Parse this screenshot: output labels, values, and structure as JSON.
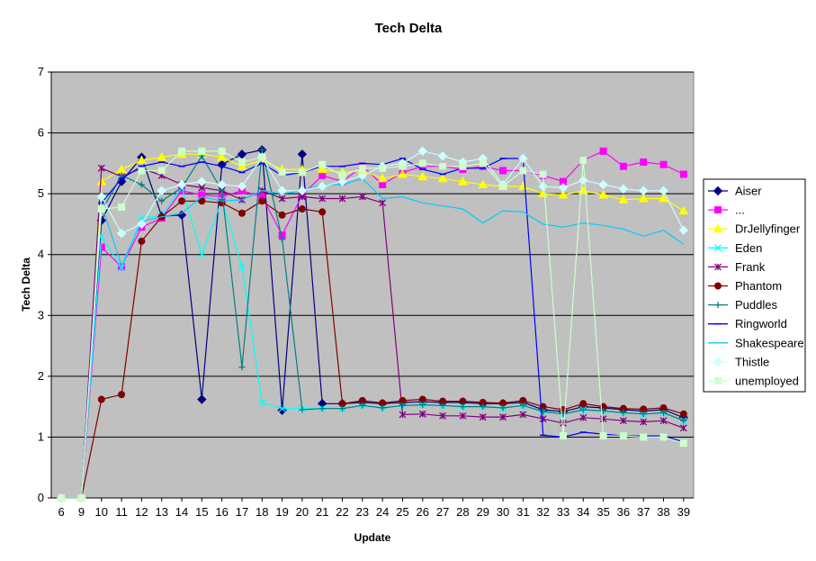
{
  "chart_data": {
    "type": "line",
    "title": "Tech Delta",
    "xlabel": "Update",
    "ylabel": "Tech Delta",
    "ylim": [
      0,
      7
    ],
    "yticks": [
      0,
      1,
      2,
      3,
      4,
      5,
      6,
      7
    ],
    "grid": true,
    "legend_position": "right",
    "plot_background": "#c0c0c0",
    "categories": [
      "6",
      "9",
      "10",
      "11",
      "12",
      "13",
      "14",
      "15",
      "16",
      "17",
      "18",
      "19",
      "20",
      "21",
      "22",
      "23",
      "24",
      "25",
      "26",
      "27",
      "28",
      "29",
      "30",
      "31",
      "32",
      "33",
      "34",
      "35",
      "36",
      "37",
      "38",
      "39"
    ],
    "series": [
      {
        "name": "Aiser",
        "color": "#000080",
        "marker": "diamond",
        "values": [
          0,
          0,
          4.56,
          5.2,
          5.6,
          4.63,
          4.65,
          1.62,
          5.48,
          5.65,
          5.72,
          1.44,
          5.65,
          1.55,
          1.55,
          1.57,
          1.55,
          1.57,
          1.58,
          1.57,
          1.57,
          1.55,
          1.55,
          1.57,
          1.45,
          1.42,
          1.5,
          1.48,
          1.45,
          1.43,
          1.45,
          1.32
        ]
      },
      {
        "name": "...",
        "color": "#ff00ff",
        "marker": "square",
        "values": [
          0,
          0,
          4.12,
          3.8,
          4.45,
          4.6,
          5.05,
          4.98,
          4.95,
          5.05,
          4.95,
          4.32,
          4.98,
          5.3,
          5.2,
          5.45,
          5.15,
          5.35,
          5.45,
          5.45,
          5.4,
          5.45,
          5.38,
          5.38,
          5.3,
          5.2,
          5.55,
          5.7,
          5.45,
          5.52,
          5.48,
          5.32
        ]
      },
      {
        "name": "DrJellyfinger",
        "color": "#ffff00",
        "marker": "triangle",
        "values": [
          0,
          0,
          5.2,
          5.4,
          5.55,
          5.6,
          5.65,
          5.65,
          5.6,
          5.45,
          5.55,
          5.4,
          5.4,
          5.4,
          5.35,
          5.38,
          5.25,
          5.32,
          5.28,
          5.25,
          5.2,
          5.15,
          5.12,
          5.12,
          5.0,
          4.98,
          5.05,
          4.98,
          4.9,
          4.92,
          4.92,
          4.72
        ]
      },
      {
        "name": "Eden",
        "color": "#00ffff",
        "marker": "x",
        "values": [
          0,
          0,
          4.3,
          3.78,
          4.6,
          4.65,
          5.1,
          4.0,
          4.9,
          3.8,
          1.57,
          1.47,
          1.47,
          1.47,
          1.47,
          1.52,
          1.48,
          1.52,
          1.53,
          1.52,
          1.5,
          1.5,
          1.48,
          1.52,
          1.42,
          1.38,
          1.45,
          1.43,
          1.4,
          1.38,
          1.4,
          1.27
        ]
      },
      {
        "name": "Frank",
        "color": "#800080",
        "marker": "star",
        "values": [
          0,
          0,
          5.42,
          5.28,
          5.42,
          5.3,
          5.15,
          5.1,
          5.05,
          4.9,
          5.05,
          4.92,
          4.95,
          4.92,
          4.92,
          4.95,
          4.85,
          1.37,
          1.38,
          1.35,
          1.35,
          1.33,
          1.33,
          1.37,
          1.3,
          1.23,
          1.32,
          1.3,
          1.27,
          1.25,
          1.27,
          1.15
        ]
      },
      {
        "name": "Phantom",
        "color": "#800000",
        "marker": "circle",
        "values": [
          0,
          0,
          1.62,
          1.7,
          4.22,
          4.62,
          4.88,
          4.88,
          4.85,
          4.68,
          4.88,
          4.65,
          4.75,
          4.7,
          1.55,
          1.6,
          1.56,
          1.6,
          1.62,
          1.59,
          1.59,
          1.57,
          1.56,
          1.6,
          1.5,
          1.45,
          1.55,
          1.5,
          1.47,
          1.46,
          1.48,
          1.38
        ]
      },
      {
        "name": "Puddles",
        "color": "#008080",
        "marker": "plus",
        "values": [
          0,
          0,
          4.72,
          5.3,
          5.15,
          4.88,
          5.1,
          5.62,
          5.05,
          2.15,
          5.72,
          4.25,
          1.45,
          1.47,
          1.47,
          1.52,
          1.48,
          1.52,
          1.53,
          1.52,
          1.5,
          1.5,
          1.48,
          1.52,
          1.42,
          1.38,
          1.45,
          1.43,
          1.4,
          1.38,
          1.4,
          1.27
        ]
      },
      {
        "name": "Ringworld",
        "color": "#0000ff",
        "marker": "dash",
        "values": [
          0,
          0,
          4.85,
          5.25,
          5.45,
          5.52,
          5.45,
          5.52,
          5.45,
          5.35,
          5.5,
          5.3,
          5.35,
          5.45,
          5.45,
          5.5,
          5.48,
          5.58,
          5.4,
          5.32,
          5.42,
          5.42,
          5.58,
          5.58,
          1.03,
          1.0,
          1.08,
          1.05,
          1.02,
          1.02,
          1.02,
          0.92
        ]
      },
      {
        "name": "Shakespeare",
        "color": "#00ccff",
        "marker": "line",
        "values": [
          0,
          0,
          4.82,
          3.82,
          4.55,
          4.62,
          4.68,
          4.95,
          4.88,
          4.9,
          5.05,
          5.0,
          5.05,
          5.15,
          5.15,
          5.25,
          4.92,
          4.95,
          4.85,
          4.8,
          4.75,
          4.52,
          4.72,
          4.7,
          4.5,
          4.45,
          4.52,
          4.48,
          4.42,
          4.3,
          4.4,
          4.17
        ]
      },
      {
        "name": "Thistle",
        "color": "#ccffff",
        "marker": "diamond",
        "values": [
          0,
          0,
          4.95,
          4.35,
          4.5,
          5.05,
          5.15,
          5.2,
          5.15,
          5.12,
          5.6,
          5.05,
          5.05,
          5.12,
          5.2,
          5.3,
          5.45,
          5.5,
          5.7,
          5.62,
          5.52,
          5.58,
          5.15,
          5.58,
          5.12,
          5.1,
          5.22,
          5.15,
          5.08,
          5.05,
          5.05,
          4.4
        ]
      },
      {
        "name": "unemployed",
        "color": "#ccffcc",
        "marker": "square",
        "values": [
          0,
          0,
          4.75,
          4.78,
          5.38,
          5.38,
          5.7,
          5.7,
          5.7,
          5.52,
          5.6,
          5.35,
          5.35,
          5.48,
          5.3,
          5.42,
          5.42,
          5.45,
          5.5,
          5.45,
          5.45,
          5.5,
          5.12,
          5.38,
          5.32,
          1.02,
          5.55,
          1.02,
          1.02,
          1.0,
          1.0,
          0.9
        ]
      }
    ]
  }
}
